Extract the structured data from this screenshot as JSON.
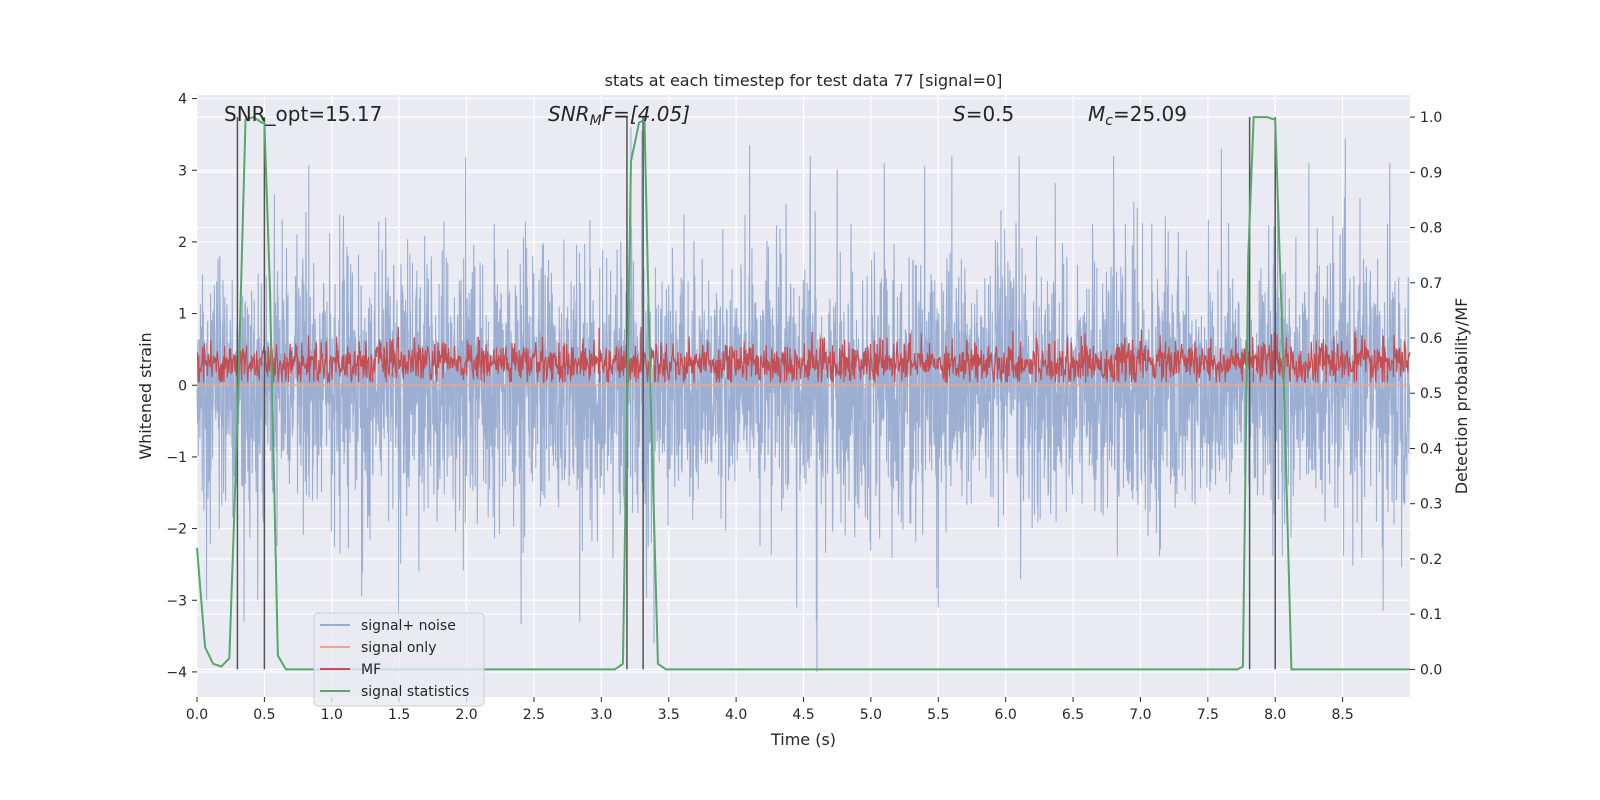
{
  "chart_data": {
    "type": "line",
    "title": "stats at each timestep for test data 77 [signal=0]",
    "xlabel": "Time (s)",
    "ylabel": "Whitened strain",
    "ylabel_right": "Detection probability/MF",
    "xlim": [
      0,
      9.0
    ],
    "ylim": [
      -4.35,
      4.05
    ],
    "ylim_right": [
      -0.05,
      1.04
    ],
    "xticks": [
      0.0,
      0.5,
      1.0,
      1.5,
      2.0,
      2.5,
      3.0,
      3.5,
      4.0,
      4.5,
      5.0,
      5.5,
      6.0,
      6.5,
      7.0,
      7.5,
      8.0,
      8.5
    ],
    "xtick_labels": [
      "0.0",
      "0.5",
      "1.0",
      "1.5",
      "2.0",
      "2.5",
      "3.0",
      "3.5",
      "4.0",
      "4.5",
      "5.0",
      "5.5",
      "6.0",
      "6.5",
      "7.0",
      "7.5",
      "8.0",
      "8.5"
    ],
    "yticks": [
      -4,
      -3,
      -2,
      -1,
      0,
      1,
      2,
      3,
      4
    ],
    "ytick_labels": [
      "−4",
      "−3",
      "−2",
      "−1",
      "0",
      "1",
      "2",
      "3",
      "4"
    ],
    "yticks_right": [
      0.0,
      0.1,
      0.2,
      0.3,
      0.4,
      0.5,
      0.6,
      0.7,
      0.8,
      0.9,
      1.0
    ],
    "ytick_labels_right": [
      "0.0",
      "0.1",
      "0.2",
      "0.3",
      "0.4",
      "0.5",
      "0.6",
      "0.7",
      "0.8",
      "0.9",
      "1.0"
    ],
    "grid": true,
    "legend_position": "lower-left",
    "annotations": {
      "snr_opt": "SNR_opt=15.17",
      "snr_mf_sym": "SNR",
      "snr_mf_sub": "M",
      "snr_mf_rest": "F=[4.05]",
      "s_sym": "S",
      "s_rest": "=0.5",
      "mc_sym": "M",
      "mc_sub": "c",
      "mc_rest": "=25.09"
    },
    "vlines_x": [
      0.3,
      0.5,
      3.19,
      3.31,
      7.81,
      8.0
    ],
    "colors": {
      "plot_bg": "#eaeaf2",
      "grid": "#ffffff",
      "signal_noise": "#98acd0",
      "signal_only": "#e8a98f",
      "mf": "#c44e52",
      "signal_statistics": "#55a868",
      "vline": "#555555"
    },
    "series": [
      {
        "name": "signal+ noise",
        "axis": "left",
        "description_stats": {
          "mean": 0.0,
          "std": 0.9,
          "min": -4.0,
          "max": 3.65
        },
        "spikes_high": [
          [
            0.45,
            2.9
          ],
          [
            0.83,
            3.07
          ],
          [
            3.22,
            3.6
          ],
          [
            3.3,
            3.55
          ],
          [
            4.1,
            3.35
          ],
          [
            4.55,
            3.2
          ],
          [
            5.1,
            3.1
          ],
          [
            5.6,
            3.2
          ],
          [
            6.1,
            3.2
          ],
          [
            6.8,
            3.2
          ],
          [
            7.6,
            3.3
          ],
          [
            8.0,
            3.6
          ],
          [
            8.25,
            3.1
          ],
          [
            8.85,
            3.1
          ]
        ],
        "spikes_low": [
          [
            0.07,
            -3.0
          ],
          [
            0.35,
            -3.3
          ],
          [
            0.45,
            -3.0
          ],
          [
            2.84,
            -3.3
          ],
          [
            3.39,
            -3.6
          ],
          [
            4.45,
            -3.1
          ],
          [
            4.6,
            -4.0
          ],
          [
            5.5,
            -3.1
          ],
          [
            8.8,
            -3.15
          ]
        ]
      },
      {
        "name": "signal only",
        "axis": "left",
        "constant": 0.0
      },
      {
        "name": "MF",
        "axis": "right",
        "range": [
          0.52,
          0.62
        ],
        "mean": 0.555
      },
      {
        "name": "signal statistics",
        "axis": "right",
        "x": [
          0.0,
          0.06,
          0.12,
          0.18,
          0.24,
          0.3,
          0.36,
          0.42,
          0.48,
          0.5,
          0.54,
          0.6,
          0.66,
          0.72,
          3.1,
          3.16,
          3.22,
          3.28,
          3.32,
          3.36,
          3.42,
          3.48,
          3.54,
          7.72,
          7.76,
          7.8,
          7.84,
          7.88,
          7.94,
          8.0,
          8.06,
          8.12,
          8.2,
          9.0
        ],
        "y": [
          0.22,
          0.04,
          0.01,
          0.005,
          0.02,
          0.45,
          0.995,
          1.0,
          0.99,
          0.99,
          0.7,
          0.025,
          0.0,
          0.0,
          0.0,
          0.01,
          0.92,
          0.99,
          0.995,
          0.55,
          0.01,
          0.0,
          0.0,
          0.0,
          0.005,
          0.75,
          1.0,
          1.0,
          1.0,
          0.995,
          0.55,
          0.0,
          0.0,
          0.0
        ]
      }
    ]
  }
}
